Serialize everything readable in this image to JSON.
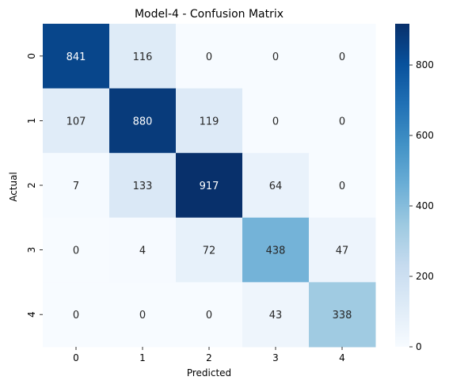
{
  "chart_data": {
    "type": "heatmap",
    "title": "Model-4 - Confusion Matrix",
    "xlabel": "Predicted",
    "ylabel": "Actual",
    "x_categories": [
      "0",
      "1",
      "2",
      "3",
      "4"
    ],
    "y_categories": [
      "0",
      "1",
      "2",
      "3",
      "4"
    ],
    "values": [
      [
        841,
        116,
        0,
        0,
        0
      ],
      [
        107,
        880,
        119,
        0,
        0
      ],
      [
        7,
        133,
        917,
        64,
        0
      ],
      [
        0,
        4,
        72,
        438,
        47
      ],
      [
        0,
        0,
        0,
        43,
        338
      ]
    ],
    "colormap": "Blues",
    "colormap_stops": [
      "#f7fbff",
      "#deebf7",
      "#c6dbef",
      "#9ecae1",
      "#6baed6",
      "#4292c6",
      "#2171b5",
      "#08519c",
      "#08306b"
    ],
    "vmin": 0,
    "vmax": 917,
    "colorbar_ticks": [
      0,
      200,
      400,
      600,
      800
    ],
    "annotated": true,
    "grid": false
  }
}
